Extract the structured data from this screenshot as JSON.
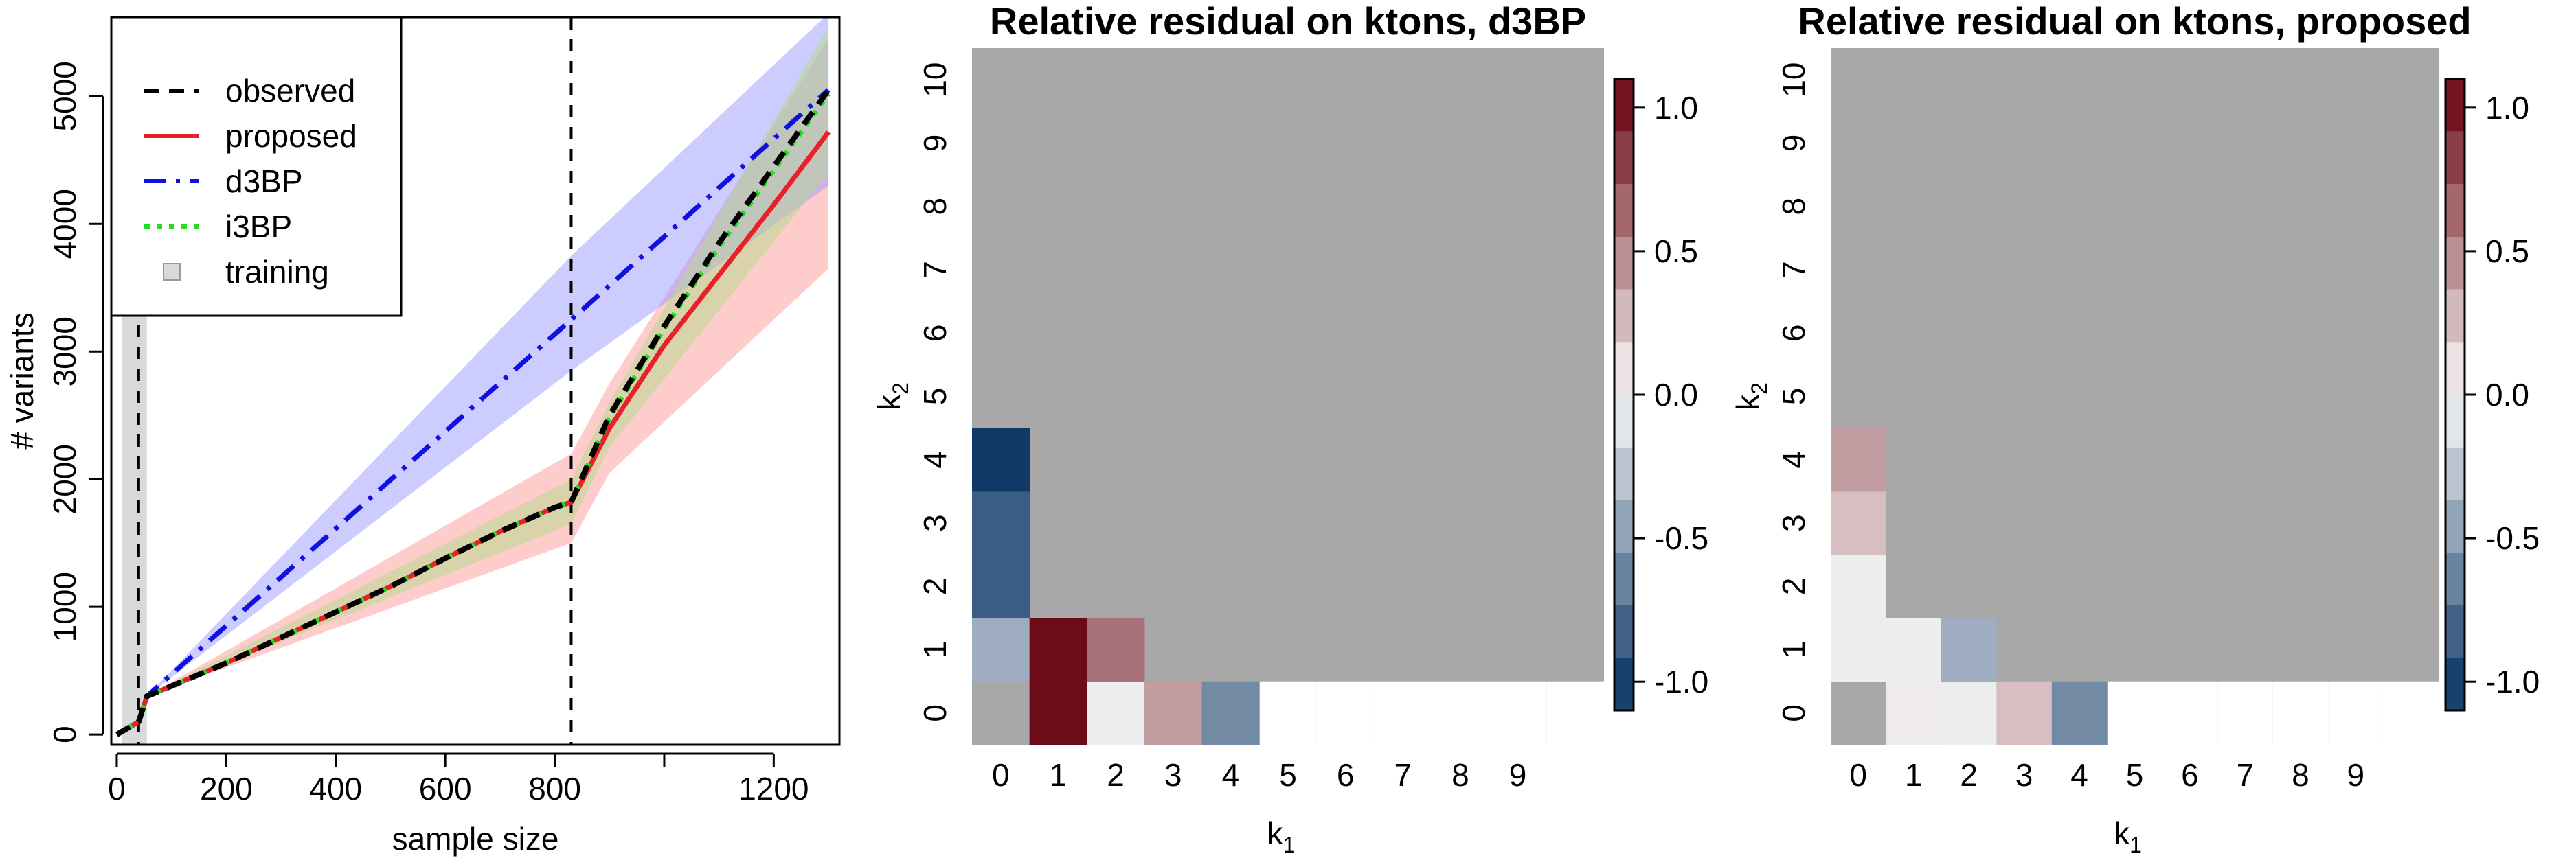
{
  "chart_data": [
    {
      "type": "line",
      "xlabel": "sample size",
      "ylabel": "# variants",
      "xlim": [
        -10,
        1320
      ],
      "ylim": [
        -80,
        5620
      ],
      "x_ticks": [
        0,
        200,
        400,
        600,
        800,
        1000,
        1200
      ],
      "x_tick_labels": [
        "0",
        "200",
        "400",
        "600",
        "800",
        "",
        "1200"
      ],
      "y_ticks": [
        0,
        1000,
        2000,
        3000,
        4000,
        5000
      ],
      "y_tick_labels": [
        "0",
        "1000",
        "2000",
        "3000",
        "4000",
        "5000"
      ],
      "vlines": [
        40,
        830
      ],
      "training_band": [
        10,
        55
      ],
      "legend_position": "top-left",
      "legend": [
        "observed",
        "proposed",
        "d3BP",
        "i3BP",
        "training"
      ],
      "series": [
        {
          "name": "observed",
          "color": "#000000",
          "style": "dashed",
          "x": [
            0,
            40,
            55,
            100,
            200,
            300,
            400,
            500,
            600,
            700,
            800,
            830,
            900,
            1000,
            1100,
            1200,
            1300
          ],
          "y": [
            0,
            100,
            300,
            380,
            560,
            760,
            960,
            1160,
            1380,
            1590,
            1780,
            1820,
            2500,
            3200,
            3850,
            4450,
            5050
          ]
        },
        {
          "name": "proposed",
          "color": "#e8202a",
          "style": "solid",
          "x": [
            0,
            40,
            55,
            100,
            200,
            300,
            400,
            500,
            600,
            700,
            800,
            830,
            900,
            1000,
            1100,
            1200,
            1300
          ],
          "y": [
            0,
            100,
            300,
            380,
            560,
            760,
            960,
            1160,
            1380,
            1590,
            1780,
            1820,
            2400,
            3050,
            3600,
            4150,
            4720
          ]
        },
        {
          "name": "d3BP",
          "color": "#1010e0",
          "style": "dotdash",
          "x": [
            0,
            40,
            55,
            830,
            1300
          ],
          "y": [
            0,
            100,
            300,
            3250,
            5050
          ]
        },
        {
          "name": "i3BP",
          "color": "#22dd22",
          "style": "dotted",
          "x": [
            0,
            40,
            55,
            100,
            200,
            300,
            400,
            500,
            600,
            700,
            800,
            830,
            900,
            1000,
            1100,
            1200,
            1300
          ],
          "y": [
            0,
            100,
            300,
            380,
            560,
            760,
            960,
            1160,
            1380,
            1590,
            1780,
            1820,
            2480,
            3180,
            3820,
            4420,
            5020
          ]
        }
      ],
      "bands": [
        {
          "name": "proposed",
          "color": "#ff9999",
          "x": [
            55,
            830,
            900,
            1300
          ],
          "lower": [
            300,
            1500,
            2050,
            3650
          ],
          "upper": [
            300,
            2200,
            2750,
            5450
          ]
        },
        {
          "name": "d3BP",
          "color": "#9999ff",
          "x": [
            55,
            830,
            1300
          ],
          "lower": [
            300,
            2850,
            4300
          ],
          "upper": [
            300,
            3750,
            5650
          ]
        },
        {
          "name": "i3BP",
          "color": "#b3d98c",
          "x": [
            55,
            830,
            900,
            1300
          ],
          "lower": [
            300,
            1650,
            2250,
            4400
          ],
          "upper": [
            300,
            2000,
            2600,
            5550
          ]
        }
      ]
    },
    {
      "type": "heatmap",
      "title": "Relative residual on ktons, d3BP",
      "xlabel": "k",
      "xlabel_sub": "1",
      "ylabel": "k",
      "ylabel_sub": "2",
      "x_categories": [
        "0",
        "1",
        "2",
        "3",
        "4",
        "5",
        "6",
        "7",
        "8",
        "9"
      ],
      "y_categories": [
        "0",
        "1",
        "2",
        "3",
        "4",
        "5",
        "6",
        "7",
        "8",
        "9",
        "10"
      ],
      "zlim": [
        -1.1,
        1.1
      ],
      "colorbar_ticks": [
        -1.0,
        -0.5,
        0.0,
        0.5,
        1.0
      ],
      "colorbar_tick_labels": [
        "-1.0",
        "-0.5",
        "0.0",
        "0.5",
        "1.0"
      ],
      "cells": [
        {
          "k1": 1,
          "k2": 0,
          "value": 1.05
        },
        {
          "k1": 2,
          "k2": 0,
          "value": -0.05
        },
        {
          "k1": 3,
          "k2": 0,
          "value": 0.4
        },
        {
          "k1": 4,
          "k2": 0,
          "value": -0.6
        },
        {
          "k1": 0,
          "k2": 1,
          "value": -0.4
        },
        {
          "k1": 1,
          "k2": 1,
          "value": 1.05
        },
        {
          "k1": 2,
          "k2": 1,
          "value": 0.6
        },
        {
          "k1": 0,
          "k2": 2,
          "value": -0.85
        },
        {
          "k1": 0,
          "k2": 3,
          "value": -0.85
        },
        {
          "k1": 0,
          "k2": 4,
          "value": -1.05
        }
      ]
    },
    {
      "type": "heatmap",
      "title": "Relative residual on ktons, proposed",
      "xlabel": "k",
      "xlabel_sub": "1",
      "ylabel": "k",
      "ylabel_sub": "2",
      "x_categories": [
        "0",
        "1",
        "2",
        "3",
        "4",
        "5",
        "6",
        "7",
        "8",
        "9"
      ],
      "y_categories": [
        "0",
        "1",
        "2",
        "3",
        "4",
        "5",
        "6",
        "7",
        "8",
        "9",
        "10"
      ],
      "zlim": [
        -1.1,
        1.1
      ],
      "colorbar_ticks": [
        -1.0,
        -0.5,
        0.0,
        0.5,
        1.0
      ],
      "colorbar_tick_labels": [
        "-1.0",
        "-0.5",
        "0.0",
        "0.5",
        "1.0"
      ],
      "cells": [
        {
          "k1": 1,
          "k2": 0,
          "value": 0.05
        },
        {
          "k1": 2,
          "k2": 0,
          "value": -0.05
        },
        {
          "k1": 3,
          "k2": 0,
          "value": 0.25
        },
        {
          "k1": 4,
          "k2": 0,
          "value": -0.6
        },
        {
          "k1": 0,
          "k2": 1,
          "value": -0.05
        },
        {
          "k1": 1,
          "k2": 1,
          "value": -0.05
        },
        {
          "k1": 2,
          "k2": 1,
          "value": -0.4
        },
        {
          "k1": 0,
          "k2": 2,
          "value": -0.05
        },
        {
          "k1": 0,
          "k2": 3,
          "value": 0.25
        },
        {
          "k1": 0,
          "k2": 4,
          "value": 0.4
        }
      ]
    }
  ]
}
